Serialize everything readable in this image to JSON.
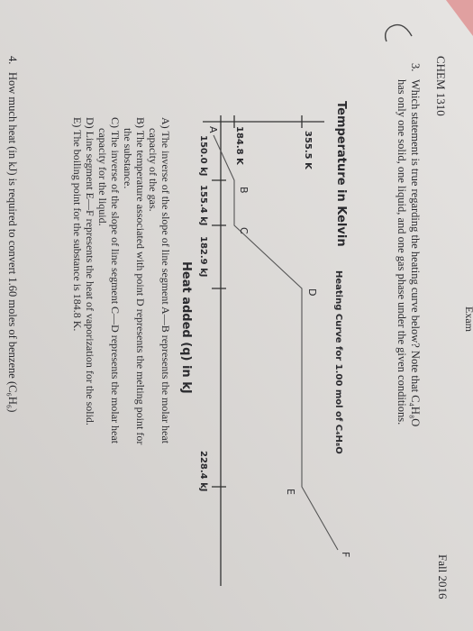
{
  "header": {
    "course": "CHEM 1310",
    "exam": "Exam",
    "term": "Fall 2016"
  },
  "question3": {
    "number": "3.",
    "lines": [
      "Which statement is true regarding the heating curve below? Note that C₄H₈O",
      "has only one solid, one liquid, and one gas phase under the given conditions."
    ],
    "graph": {
      "title": "Heating Curve for 1.00 mol of C₄H₈O",
      "y_axis_label": "Temperature in Kelvin",
      "x_axis_label": "Heat added (q) in kJ",
      "y_ticks": [
        "355.5 K",
        "184.8 K"
      ],
      "x_ticks": [
        "150.0 kJ",
        "155.4 kJ",
        "182.9 kJ",
        "228.4 kJ"
      ],
      "points": [
        "A",
        "B",
        "C",
        "D",
        "E",
        "F"
      ]
    },
    "options": [
      [
        "A) The inverse of the slope of line segment A—B represents the molar heat",
        "capacity of the gas."
      ],
      [
        "B) The temperature associated with point D represents the melting point for",
        "the substance."
      ],
      [
        "C) The inverse of the slope of line segment C—D represents the molar heat",
        "capacity for the liquid."
      ],
      [
        "D) Line segment E—F represents the heat of vaporization for the solid."
      ],
      [
        "E) The boiling point for the substance is 184.8 K."
      ]
    ]
  },
  "question4": {
    "number": "4.",
    "text": "How much heat (in kJ) is required to convert 1.60 moles of benzene (C₆H₆)"
  }
}
